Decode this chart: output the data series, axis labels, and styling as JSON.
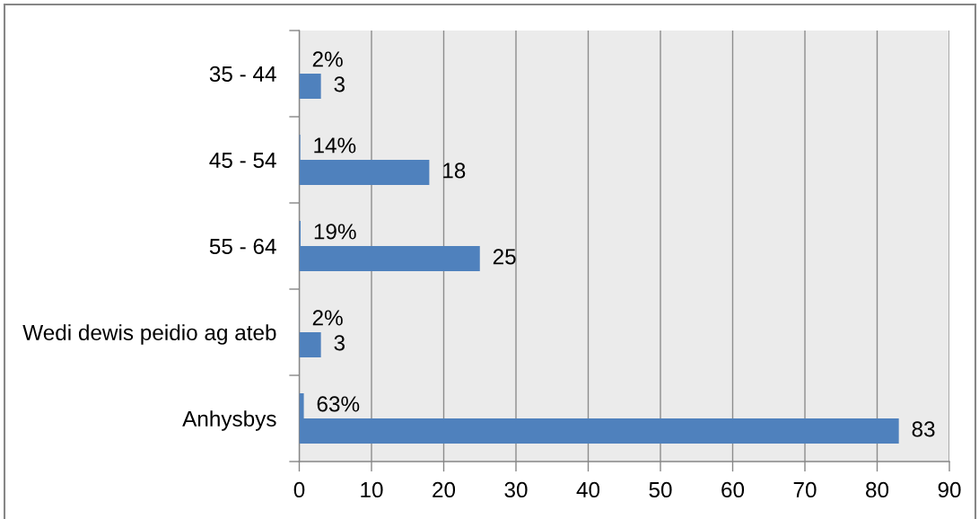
{
  "chart_data": {
    "type": "bar",
    "orientation": "horizontal",
    "categories": [
      "35 - 44",
      "45 - 54",
      "55 - 64",
      "Wedi dewis peidio ag ateb",
      "Anhysbys"
    ],
    "series": [
      {
        "color": "#4f81bd",
        "values": [
          0.02,
          0.14,
          0.19,
          0.02,
          0.63
        ],
        "value_labels": [
          "2%",
          "14%",
          "19%",
          "2%",
          "63%"
        ]
      },
      {
        "color": "#4f81bd",
        "values": [
          3,
          18,
          25,
          3,
          83
        ],
        "value_labels": [
          "3",
          "18",
          "25",
          "3",
          "83"
        ]
      }
    ],
    "xlim": [
      0,
      90
    ],
    "xticks": [
      0,
      10,
      20,
      30,
      40,
      50,
      60,
      70,
      80,
      90
    ],
    "grid": "x"
  }
}
